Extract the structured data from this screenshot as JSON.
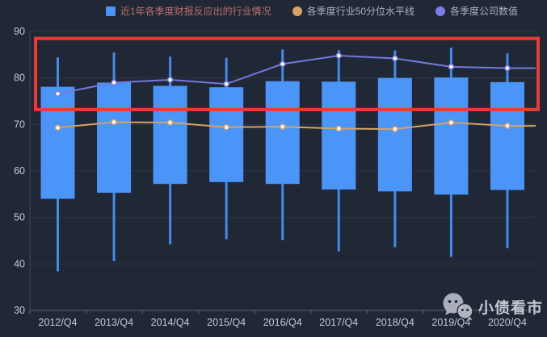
{
  "theme": {
    "background": "#212835",
    "grid_color": "#2d3546",
    "axis_line_color": "#5c6578",
    "left_axis_color": "#3d475c",
    "tick_label_color": "#bfc9dd",
    "box_color": "#4b94f8",
    "whisker_color": "#4389f0",
    "median_line_color": "#d5a267",
    "company_line_color": "#7578e0",
    "dot_fill": "#ffffff",
    "annotation_color": "#ee3b31"
  },
  "legend": {
    "items": [
      {
        "label": "近1年各季度财报反应出的行业情况",
        "marker": "square",
        "color": "#4b94f8",
        "text_color": "#bb6f6f"
      },
      {
        "label": "各季度行业50分位水平线",
        "marker": "circle",
        "color": "#d5a267",
        "text_color": "#a9b2c4"
      },
      {
        "label": "各季度公司数值",
        "marker": "circle",
        "color": "#7b7ee8",
        "text_color": "#a9b2c4"
      }
    ]
  },
  "watermark": {
    "icon": "wechat-icon",
    "text": "小债看市"
  },
  "chart_data": {
    "type": "candlestick+line",
    "title": "",
    "xlabel": "",
    "ylabel": "",
    "ylim": [
      30,
      90
    ],
    "y_ticks": [
      90,
      80,
      70,
      60,
      50,
      40,
      30
    ],
    "grid": true,
    "legend_position": "top",
    "categories": [
      "2012/Q4",
      "2013/Q4",
      "2014/Q4",
      "2015/Q4",
      "2016/Q4",
      "2017/Q4",
      "2018/Q4",
      "2019/Q4",
      "2020/Q4"
    ],
    "series": [
      {
        "name": "近1年各季度财报反应出的行业情况",
        "type": "candlestick",
        "points": [
          {
            "high": 84.4,
            "q3": 78.1,
            "q1": 54.0,
            "low": 38.4
          },
          {
            "high": 85.5,
            "q3": 79.0,
            "q1": 55.3,
            "low": 40.6
          },
          {
            "high": 84.6,
            "q3": 78.3,
            "q1": 57.2,
            "low": 44.2
          },
          {
            "high": 84.3,
            "q3": 78.0,
            "q1": 57.6,
            "low": 45.3
          },
          {
            "high": 86.1,
            "q3": 79.3,
            "q1": 57.2,
            "low": 45.1
          },
          {
            "high": 86.0,
            "q3": 79.2,
            "q1": 56.0,
            "low": 42.7
          },
          {
            "high": 85.9,
            "q3": 80.0,
            "q1": 55.6,
            "low": 43.6
          },
          {
            "high": 86.5,
            "q3": 80.1,
            "q1": 54.9,
            "low": 41.5
          },
          {
            "high": 85.3,
            "q3": 79.1,
            "q1": 55.9,
            "low": 43.4
          }
        ]
      },
      {
        "name": "各季度行业50分位水平线",
        "type": "line",
        "values": [
          69.3,
          70.5,
          70.4,
          69.4,
          69.5,
          69.1,
          69.0,
          70.4,
          69.7
        ],
        "extends_to_right_edge": true
      },
      {
        "name": "各季度公司数值",
        "type": "line",
        "values": [
          76.6,
          79.0,
          79.6,
          78.7,
          83.0,
          84.8,
          84.2,
          82.4,
          82.1
        ],
        "extends_to_right_edge": true
      }
    ],
    "annotation": {
      "shape": "rect",
      "description": "red highlight box over upper value band",
      "y_top_value": 88.5,
      "y_bottom_value": 73.2
    }
  }
}
